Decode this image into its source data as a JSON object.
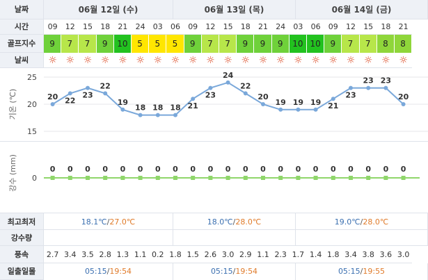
{
  "labels": {
    "date": "날짜",
    "time": "시간",
    "golf": "골프지수",
    "weather": "날씨",
    "temp_axis": "기온 (℃)",
    "rain_axis": "강수 (mm)",
    "minmax": "최고최저",
    "rain_amount": "강수량",
    "wind": "풍속",
    "sunrise": "일출일몰"
  },
  "dates": [
    "06월 12일 (수)",
    "06월 13일 (목)",
    "06월 14일 (금)"
  ],
  "hours": [
    "09",
    "12",
    "15",
    "18",
    "21",
    "24",
    "03",
    "06",
    "09",
    "12",
    "15",
    "18",
    "21",
    "24",
    "03",
    "06",
    "09",
    "12",
    "15",
    "18",
    "21"
  ],
  "golf_index": [
    9,
    7,
    7,
    9,
    10,
    5,
    5,
    5,
    9,
    7,
    7,
    9,
    9,
    9,
    10,
    10,
    9,
    7,
    7,
    8,
    8
  ],
  "golf_colors": {
    "5": "#ffe600",
    "7": "#b7e64a",
    "8": "#8fd63a",
    "9": "#6fd13a",
    "10": "#22c21f"
  },
  "weather_icon": "sun-icon",
  "chart_data": [
    {
      "type": "line",
      "x": [
        "09",
        "12",
        "15",
        "18",
        "21",
        "24",
        "03",
        "06",
        "09",
        "12",
        "15",
        "18",
        "21",
        "24",
        "03",
        "06",
        "09",
        "12",
        "15",
        "18",
        "21"
      ],
      "series": [
        {
          "values": [
            20,
            22,
            23,
            22,
            19,
            18,
            18,
            18,
            21,
            23,
            24,
            22,
            20,
            19,
            19,
            19,
            21,
            23,
            23,
            23,
            20
          ]
        }
      ],
      "ylabel": "기온 (℃)",
      "ylim": [
        15,
        25
      ],
      "yticks": [
        15,
        20,
        25
      ],
      "grid": true,
      "color": "#7aa8da"
    },
    {
      "type": "line",
      "x": [
        "09",
        "12",
        "15",
        "18",
        "21",
        "24",
        "03",
        "06",
        "09",
        "12",
        "15",
        "18",
        "21",
        "24",
        "03",
        "06",
        "09",
        "12",
        "15",
        "18",
        "21"
      ],
      "series": [
        {
          "values": [
            0,
            0,
            0,
            0,
            0,
            0,
            0,
            0,
            0,
            0,
            0,
            0,
            0,
            0,
            0,
            0,
            0,
            0,
            0,
            0,
            0
          ]
        }
      ],
      "ylabel": "강수 (mm)",
      "yticks": [
        0
      ],
      "color": "#8fd66a"
    }
  ],
  "minmax": [
    {
      "min": "18.1℃",
      "max": "27.0℃"
    },
    {
      "min": "18.0℃",
      "max": "28.0℃"
    },
    {
      "min": "19.0℃",
      "max": "28.0℃"
    }
  ],
  "wind": [
    "2.7",
    "3.4",
    "3.5",
    "2.8",
    "1.3",
    "1.1",
    "0.2",
    "1.8",
    "1.5",
    "2.6",
    "3.0",
    "2.9",
    "1.1",
    "2.3",
    "1.7",
    "1.4",
    "1.8",
    "3.4",
    "3.8",
    "3.6",
    "3.0"
  ],
  "sun_times": [
    {
      "rise": "05:15",
      "set": "19:54"
    },
    {
      "rise": "05:15",
      "set": "19:54"
    },
    {
      "rise": "05:15",
      "set": "19:55"
    }
  ]
}
